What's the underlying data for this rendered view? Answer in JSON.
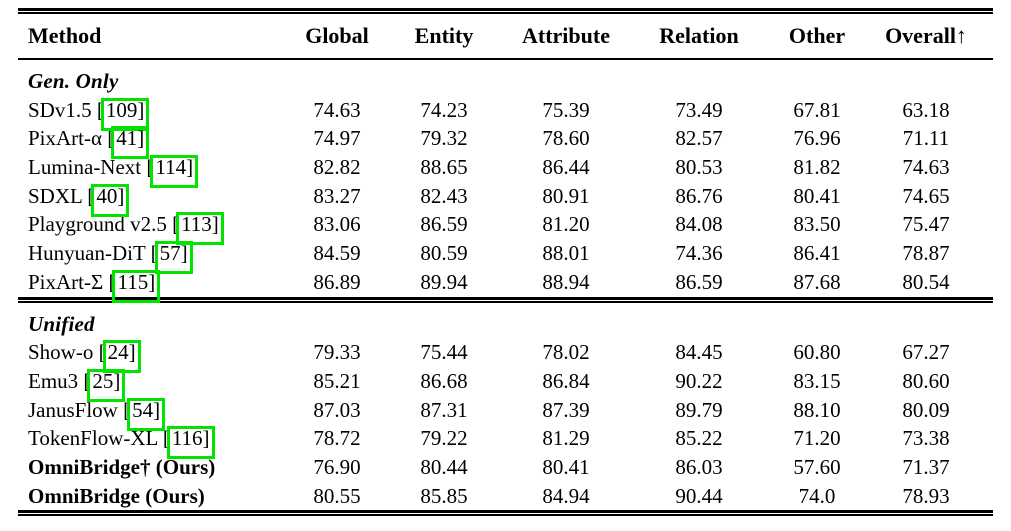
{
  "table": {
    "highlight_color": "#00e400",
    "citation_format": {
      "open": "[",
      "close": "]"
    },
    "columns": [
      "Method",
      "Global",
      "Entity",
      "Attribute",
      "Relation",
      "Other",
      "Overall↑"
    ],
    "sections": [
      {
        "title": "Gen. Only",
        "rows": [
          {
            "method": "SDv1.5",
            "cite": "109",
            "bold": false,
            "values": [
              "74.63",
              "74.23",
              "75.39",
              "73.49",
              "67.81",
              "63.18"
            ]
          },
          {
            "method": "PixArt-α",
            "cite": "41",
            "bold": false,
            "values": [
              "74.97",
              "79.32",
              "78.60",
              "82.57",
              "76.96",
              "71.11"
            ]
          },
          {
            "method": "Lumina-Next",
            "cite": "114",
            "bold": false,
            "values": [
              "82.82",
              "88.65",
              "86.44",
              "80.53",
              "81.82",
              "74.63"
            ]
          },
          {
            "method": "SDXL",
            "cite": "40",
            "bold": false,
            "values": [
              "83.27",
              "82.43",
              "80.91",
              "86.76",
              "80.41",
              "74.65"
            ]
          },
          {
            "method": "Playground v2.5",
            "cite": "113",
            "bold": false,
            "values": [
              "83.06",
              "86.59",
              "81.20",
              "84.08",
              "83.50",
              "75.47"
            ]
          },
          {
            "method": "Hunyuan-DiT",
            "cite": "57",
            "bold": false,
            "values": [
              "84.59",
              "80.59",
              "88.01",
              "74.36",
              "86.41",
              "78.87"
            ]
          },
          {
            "method": "PixArt-Σ",
            "cite": "115",
            "bold": false,
            "values": [
              "86.89",
              "89.94",
              "88.94",
              "86.59",
              "87.68",
              "80.54"
            ]
          }
        ]
      },
      {
        "title": "Unified",
        "rows": [
          {
            "method": "Show-o",
            "cite": "24",
            "bold": false,
            "values": [
              "79.33",
              "75.44",
              "78.02",
              "84.45",
              "60.80",
              "67.27"
            ]
          },
          {
            "method": "Emu3",
            "cite": "25",
            "bold": false,
            "values": [
              "85.21",
              "86.68",
              "86.84",
              "90.22",
              "83.15",
              "80.60"
            ]
          },
          {
            "method": "JanusFlow",
            "cite": "54",
            "bold": false,
            "values": [
              "87.03",
              "87.31",
              "87.39",
              "89.79",
              "88.10",
              "80.09"
            ]
          },
          {
            "method": "TokenFlow-XL",
            "cite": "116",
            "bold": false,
            "values": [
              "78.72",
              "79.22",
              "81.29",
              "85.22",
              "71.20",
              "73.38"
            ]
          },
          {
            "method": "OmniBridge† (Ours)",
            "cite": null,
            "bold": true,
            "values": [
              "76.90",
              "80.44",
              "80.41",
              "86.03",
              "57.60",
              "71.37"
            ]
          },
          {
            "method": "OmniBridge (Ours)",
            "cite": null,
            "bold": true,
            "values": [
              "80.55",
              "85.85",
              "84.94",
              "90.44",
              "74.0",
              "78.93"
            ]
          }
        ]
      }
    ]
  }
}
